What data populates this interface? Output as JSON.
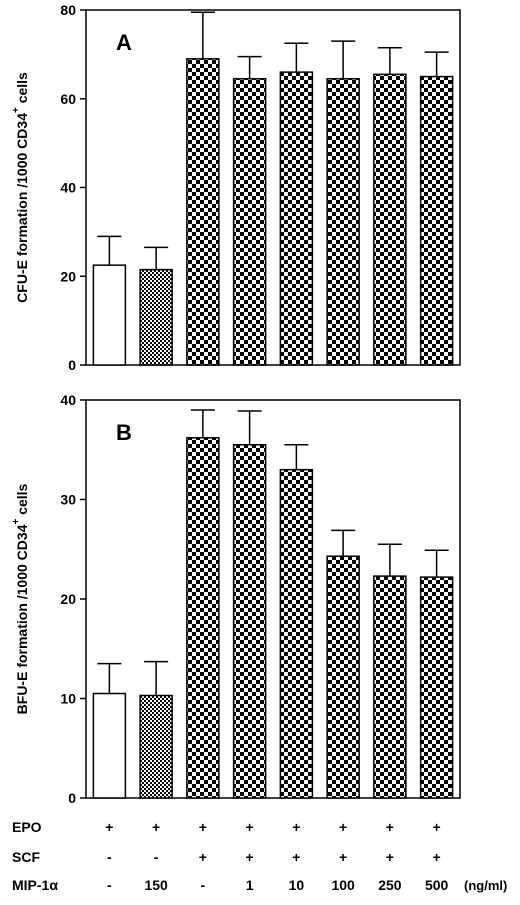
{
  "chart_data": [
    {
      "panel": "A",
      "type": "bar",
      "ylabel": "CFU-E formation /1000 CD34",
      "ylabel_sup": "+",
      "ylabel_suffix": " cells",
      "ylim": [
        0,
        80
      ],
      "yticks": [
        "0",
        "20",
        "40",
        "60",
        "80"
      ],
      "series": [
        {
          "values": [
            22.5,
            21.5,
            69,
            64.5,
            66,
            64.5,
            65.5,
            65
          ],
          "errors": [
            6.5,
            5,
            10.5,
            5,
            6.5,
            8.5,
            6,
            5.5
          ],
          "patterns": [
            "white",
            "fine",
            "checker",
            "checker",
            "checker",
            "checker",
            "checker",
            "checker"
          ]
        }
      ]
    },
    {
      "panel": "B",
      "type": "bar",
      "ylabel": "BFU-E formation /1000 CD34",
      "ylabel_sup": "+",
      "ylabel_suffix": " cells",
      "ylim": [
        0,
        40
      ],
      "yticks": [
        "0",
        "10",
        "20",
        "30",
        "40"
      ],
      "series": [
        {
          "values": [
            10.5,
            10.3,
            36.2,
            35.5,
            33,
            24.3,
            22.3,
            22.2
          ],
          "errors": [
            3,
            3.4,
            2.8,
            3.4,
            2.5,
            2.6,
            3.2,
            2.7
          ],
          "patterns": [
            "white",
            "fine",
            "checker",
            "checker",
            "checker",
            "checker",
            "checker",
            "checker"
          ]
        }
      ]
    }
  ],
  "conditions": {
    "rows": [
      {
        "label": "EPO",
        "values": [
          "+",
          "+",
          "+",
          "+",
          "+",
          "+",
          "+",
          "+"
        ]
      },
      {
        "label": "SCF",
        "values": [
          "-",
          "-",
          "+",
          "+",
          "+",
          "+",
          "+",
          "+"
        ]
      },
      {
        "label": "MIP-1α",
        "values": [
          "-",
          "150",
          "-",
          "1",
          "10",
          "100",
          "250",
          "500"
        ]
      }
    ],
    "unit": "(ng/ml)"
  }
}
